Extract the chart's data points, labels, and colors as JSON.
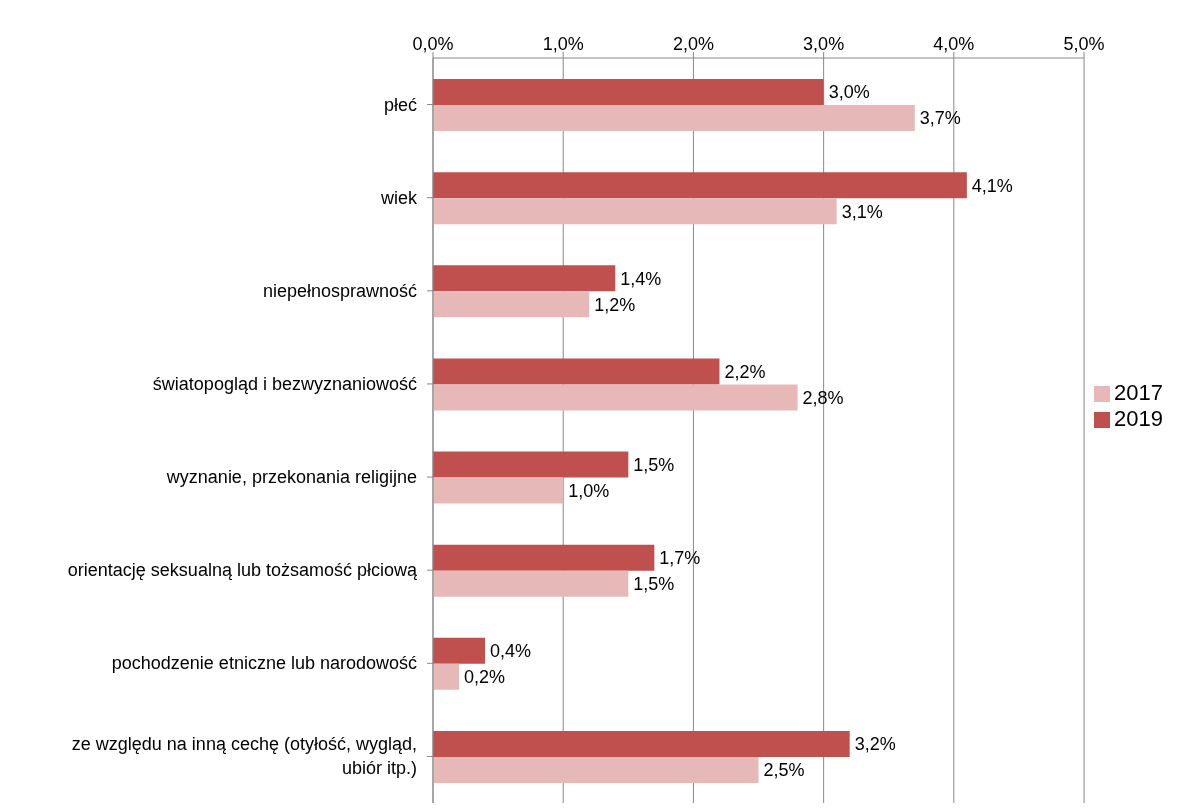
{
  "chart_data": {
    "type": "bar",
    "orientation": "horizontal",
    "categories": [
      "płeć",
      "wiek",
      "niepełnosprawność",
      "światopogląd i bezwyznaniowość",
      "wyznanie, przekonania religijne",
      "orientację seksualną lub tożsamość płciową",
      "pochodzenie etniczne lub narodowość",
      "ze względu na inną cechę (otyłość, wygląd, ubiór itp.)"
    ],
    "series": [
      {
        "name": "2019",
        "color": "#c0504d",
        "values": [
          3.0,
          4.1,
          1.4,
          2.2,
          1.5,
          1.7,
          0.4,
          3.2
        ],
        "value_labels": [
          "3,0%",
          "4,1%",
          "1,4%",
          "2,2%",
          "1,5%",
          "1,7%",
          "0,4%",
          "3,2%"
        ]
      },
      {
        "name": "2017",
        "color": "#e6b9b8",
        "values": [
          3.7,
          3.1,
          1.2,
          2.8,
          1.0,
          1.5,
          0.2,
          2.5
        ],
        "value_labels": [
          "3,7%",
          "3,1%",
          "1,2%",
          "2,8%",
          "1,0%",
          "1,5%",
          "0,2%",
          "2,5%"
        ]
      }
    ],
    "xlim": [
      0,
      5
    ],
    "xticks": [
      {
        "value": 0,
        "label": "0,0%"
      },
      {
        "value": 1,
        "label": "1,0%"
      },
      {
        "value": 2,
        "label": "2,0%"
      },
      {
        "value": 3,
        "label": "3,0%"
      },
      {
        "value": 4,
        "label": "4,0%"
      },
      {
        "value": 5,
        "label": "5,0%"
      }
    ],
    "grid": "x",
    "legend": "right"
  }
}
